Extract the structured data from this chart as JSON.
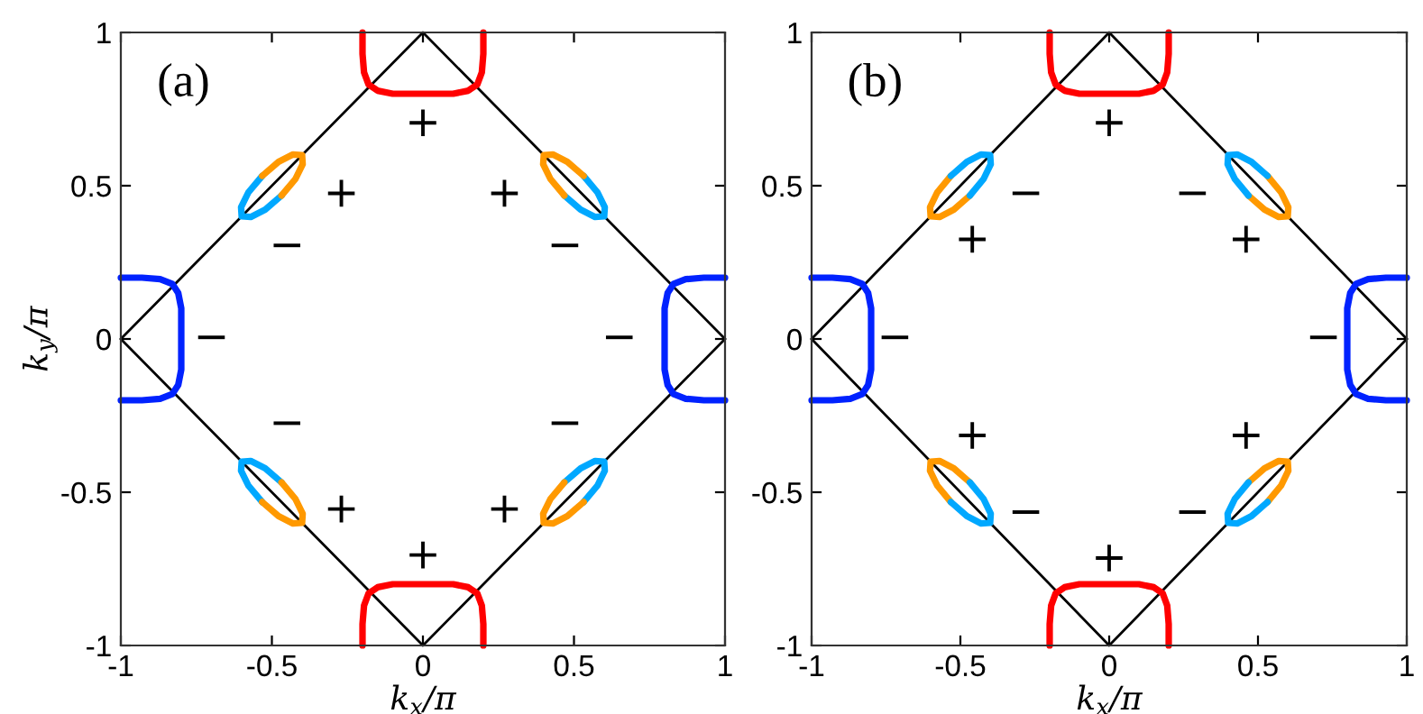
{
  "chart_data": [
    {
      "type": "line",
      "xlabel": "k$_{x}$/π",
      "ylabel": "k$_{y}$/π",
      "xlim": [
        -1,
        1
      ],
      "ylim": [
        -1,
        1
      ],
      "xticks": [
        -1,
        -0.5,
        0,
        0.5,
        1
      ],
      "yticks": [
        -1,
        -0.5,
        0,
        0.5,
        1
      ],
      "grid": false,
      "legend": false,
      "annotations": [
        "(a)",
        "+",
        "+",
        "+",
        "+",
        "+",
        "+",
        "−",
        "−",
        "−",
        "−",
        "−",
        "−"
      ],
      "series": [
        {
          "color": "#000000",
          "x": [
            -1,
            0,
            1
          ],
          "values": [
            0,
            1,
            0
          ]
        },
        {
          "color": "#000000",
          "x": [
            -1,
            0,
            1
          ],
          "values": [
            0,
            -1,
            0
          ]
        },
        {
          "color": "#ff0000",
          "x": [
            -0.2,
            -0.2,
            -0.195,
            -0.18,
            -0.15,
            -0.1,
            0,
            0.1,
            0.15,
            0.18,
            0.195,
            0.2,
            0.2
          ],
          "values": [
            1,
            0.93,
            0.87,
            0.83,
            0.81,
            0.8,
            0.8,
            0.8,
            0.81,
            0.83,
            0.87,
            0.93,
            1
          ]
        },
        {
          "color": "#ff0000",
          "x": [
            -0.2,
            -0.2,
            -0.195,
            -0.18,
            -0.15,
            -0.1,
            0,
            0.1,
            0.15,
            0.18,
            0.195,
            0.2,
            0.2
          ],
          "values": [
            -1,
            -0.93,
            -0.87,
            -0.83,
            -0.81,
            -0.8,
            -0.8,
            -0.8,
            -0.81,
            -0.83,
            -0.87,
            -0.93,
            -1
          ]
        },
        {
          "color": "#0022ff",
          "x": [
            -1,
            -0.93,
            -0.87,
            -0.83,
            -0.81,
            -0.8,
            -0.8,
            -0.8,
            -0.81,
            -0.83,
            -0.87,
            -0.93,
            -1
          ],
          "values": [
            -0.2,
            -0.2,
            -0.195,
            -0.18,
            -0.15,
            -0.1,
            0,
            0.1,
            0.15,
            0.18,
            0.195,
            0.2,
            0.2
          ]
        },
        {
          "color": "#0022ff",
          "x": [
            1,
            0.93,
            0.87,
            0.83,
            0.81,
            0.8,
            0.8,
            0.8,
            0.81,
            0.83,
            0.87,
            0.93,
            1
          ],
          "values": [
            -0.2,
            -0.2,
            -0.195,
            -0.18,
            -0.15,
            -0.1,
            0,
            0.1,
            0.15,
            0.18,
            0.195,
            0.2,
            0.2
          ]
        },
        {
          "color": "#00a8ff",
          "x": [
            -0.468,
            -0.522,
            -0.57,
            -0.6,
            -0.602,
            -0.578,
            -0.532
          ],
          "values": [
            0.468,
            0.422,
            0.398,
            0.4,
            0.43,
            0.478,
            0.532
          ]
        },
        {
          "color": "#ff9900",
          "x": [
            -0.532,
            -0.478,
            -0.43,
            -0.4,
            -0.398,
            -0.422,
            -0.468
          ],
          "values": [
            0.532,
            0.578,
            0.602,
            0.6,
            0.57,
            0.522,
            0.468
          ]
        },
        {
          "color": "#00a8ff",
          "x": [
            0.468,
            0.522,
            0.57,
            0.6,
            0.602,
            0.578,
            0.532
          ],
          "values": [
            0.468,
            0.422,
            0.398,
            0.4,
            0.43,
            0.478,
            0.532
          ]
        },
        {
          "color": "#ff9900",
          "x": [
            0.532,
            0.478,
            0.43,
            0.4,
            0.398,
            0.422,
            0.468
          ],
          "values": [
            0.532,
            0.578,
            0.602,
            0.6,
            0.57,
            0.522,
            0.468
          ]
        },
        {
          "color": "#00a8ff",
          "x": [
            -0.468,
            -0.522,
            -0.57,
            -0.6,
            -0.602,
            -0.578,
            -0.532
          ],
          "values": [
            -0.468,
            -0.422,
            -0.398,
            -0.4,
            -0.43,
            -0.478,
            -0.532
          ]
        },
        {
          "color": "#ff9900",
          "x": [
            -0.532,
            -0.478,
            -0.43,
            -0.4,
            -0.398,
            -0.422,
            -0.468
          ],
          "values": [
            -0.532,
            -0.578,
            -0.602,
            -0.6,
            -0.57,
            -0.522,
            -0.468
          ]
        },
        {
          "color": "#00a8ff",
          "x": [
            0.468,
            0.522,
            0.57,
            0.6,
            0.602,
            0.578,
            0.532
          ],
          "values": [
            -0.468,
            -0.422,
            -0.398,
            -0.4,
            -0.43,
            -0.478,
            -0.532
          ]
        },
        {
          "color": "#ff9900",
          "x": [
            0.532,
            0.478,
            0.43,
            0.4,
            0.398,
            0.422,
            0.468
          ],
          "values": [
            -0.532,
            -0.578,
            -0.602,
            -0.6,
            -0.57,
            -0.522,
            -0.468
          ]
        }
      ]
    },
    {
      "type": "line",
      "xlabel": "k$_{x}$/π",
      "xlim": [
        -1,
        1
      ],
      "ylim": [
        -1,
        1
      ],
      "xticks": [
        -1,
        -0.5,
        0,
        0.5,
        1
      ],
      "yticks": [
        -1,
        -0.5,
        0,
        0.5,
        1
      ],
      "grid": false,
      "legend": false,
      "annotations": [
        "(b)",
        "+",
        "+",
        "+",
        "+",
        "+",
        "+",
        "−",
        "−",
        "−",
        "−",
        "−",
        "−"
      ],
      "series": [
        {
          "color": "#000000",
          "x": [
            -1,
            0,
            1
          ],
          "values": [
            0,
            1,
            0
          ]
        },
        {
          "color": "#000000",
          "x": [
            -1,
            0,
            1
          ],
          "values": [
            0,
            -1,
            0
          ]
        },
        {
          "color": "#ff0000",
          "x": [
            -0.2,
            -0.2,
            -0.195,
            -0.18,
            -0.15,
            -0.1,
            0,
            0.1,
            0.15,
            0.18,
            0.195,
            0.2,
            0.2
          ],
          "values": [
            1,
            0.93,
            0.87,
            0.83,
            0.81,
            0.8,
            0.8,
            0.8,
            0.81,
            0.83,
            0.87,
            0.93,
            1
          ]
        },
        {
          "color": "#ff0000",
          "x": [
            -0.2,
            -0.2,
            -0.195,
            -0.18,
            -0.15,
            -0.1,
            0,
            0.1,
            0.15,
            0.18,
            0.195,
            0.2,
            0.2
          ],
          "values": [
            -1,
            -0.93,
            -0.87,
            -0.83,
            -0.81,
            -0.8,
            -0.8,
            -0.8,
            -0.81,
            -0.83,
            -0.87,
            -0.93,
            -1
          ]
        },
        {
          "color": "#0022ff",
          "x": [
            -1,
            -0.93,
            -0.87,
            -0.83,
            -0.81,
            -0.8,
            -0.8,
            -0.8,
            -0.81,
            -0.83,
            -0.87,
            -0.93,
            -1
          ],
          "values": [
            -0.2,
            -0.2,
            -0.195,
            -0.18,
            -0.15,
            -0.1,
            0,
            0.1,
            0.15,
            0.18,
            0.195,
            0.2,
            0.2
          ]
        },
        {
          "color": "#0022ff",
          "x": [
            1,
            0.93,
            0.87,
            0.83,
            0.81,
            0.8,
            0.8,
            0.8,
            0.81,
            0.83,
            0.87,
            0.93,
            1
          ],
          "values": [
            -0.2,
            -0.2,
            -0.195,
            -0.18,
            -0.15,
            -0.1,
            0,
            0.1,
            0.15,
            0.18,
            0.195,
            0.2,
            0.2
          ]
        },
        {
          "color": "#ff9900",
          "x": [
            -0.468,
            -0.522,
            -0.57,
            -0.6,
            -0.602,
            -0.578,
            -0.532
          ],
          "values": [
            0.468,
            0.422,
            0.398,
            0.4,
            0.43,
            0.478,
            0.532
          ]
        },
        {
          "color": "#00a8ff",
          "x": [
            -0.532,
            -0.478,
            -0.43,
            -0.4,
            -0.398,
            -0.422,
            -0.468
          ],
          "values": [
            0.532,
            0.578,
            0.602,
            0.6,
            0.57,
            0.522,
            0.468
          ]
        },
        {
          "color": "#ff9900",
          "x": [
            0.468,
            0.522,
            0.57,
            0.6,
            0.602,
            0.578,
            0.532
          ],
          "values": [
            0.468,
            0.422,
            0.398,
            0.4,
            0.43,
            0.478,
            0.532
          ]
        },
        {
          "color": "#00a8ff",
          "x": [
            0.532,
            0.478,
            0.43,
            0.4,
            0.398,
            0.422,
            0.468
          ],
          "values": [
            0.532,
            0.578,
            0.602,
            0.6,
            0.57,
            0.522,
            0.468
          ]
        },
        {
          "color": "#ff9900",
          "x": [
            -0.468,
            -0.522,
            -0.57,
            -0.6,
            -0.602,
            -0.578,
            -0.532
          ],
          "values": [
            -0.468,
            -0.422,
            -0.398,
            -0.4,
            -0.43,
            -0.478,
            -0.532
          ]
        },
        {
          "color": "#00a8ff",
          "x": [
            -0.532,
            -0.478,
            -0.43,
            -0.4,
            -0.398,
            -0.422,
            -0.468
          ],
          "values": [
            -0.532,
            -0.578,
            -0.602,
            -0.6,
            -0.57,
            -0.522,
            -0.468
          ]
        },
        {
          "color": "#ff9900",
          "x": [
            0.468,
            0.522,
            0.57,
            0.6,
            0.602,
            0.578,
            0.532
          ],
          "values": [
            -0.468,
            -0.422,
            -0.398,
            -0.4,
            -0.43,
            -0.478,
            -0.532
          ]
        },
        {
          "color": "#00a8ff",
          "x": [
            0.532,
            0.478,
            0.43,
            0.4,
            0.398,
            0.422,
            0.468
          ],
          "values": [
            -0.532,
            -0.578,
            -0.602,
            -0.6,
            -0.57,
            -0.522,
            -0.468
          ]
        }
      ]
    }
  ]
}
